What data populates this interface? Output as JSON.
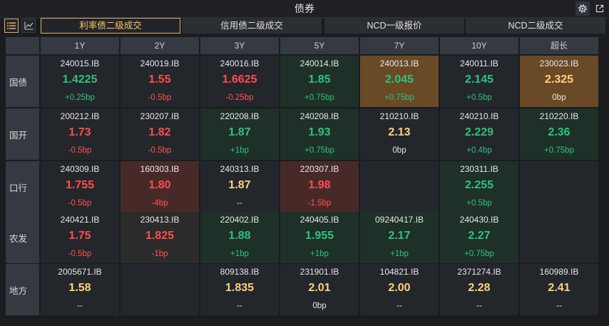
{
  "window": {
    "title": "债券"
  },
  "tabs": [
    {
      "label": "利率债二级成交",
      "active": true
    },
    {
      "label": "信用债二级成交",
      "active": false
    },
    {
      "label": "NCD一级报价",
      "active": false
    },
    {
      "label": "NCD二级成交",
      "active": false
    }
  ],
  "columns": [
    "1Y",
    "2Y",
    "3Y",
    "5Y",
    "7Y",
    "10Y",
    "超长"
  ],
  "rows": [
    {
      "name": "国债",
      "cells": [
        {
          "code": "240015.IB",
          "yield": "1.4225",
          "change": "+0.25bp",
          "tone": "green",
          "chg_tone": "green",
          "bg": "dark"
        },
        {
          "code": "240019.IB",
          "yield": "1.55",
          "change": "-0.5bp",
          "tone": "red",
          "chg_tone": "red",
          "bg": "dark"
        },
        {
          "code": "240016.IB",
          "yield": "1.6625",
          "change": "-0.25bp",
          "tone": "red",
          "chg_tone": "red",
          "bg": "dark"
        },
        {
          "code": "240014.IB",
          "yield": "1.85",
          "change": "+0.75bp",
          "tone": "green",
          "chg_tone": "green",
          "bg": "green"
        },
        {
          "code": "240013.IB",
          "yield": "2.045",
          "change": "+0.75bp",
          "tone": "green",
          "chg_tone": "green",
          "bg": "orange"
        },
        {
          "code": "240011.IB",
          "yield": "2.145",
          "change": "+0.5bp",
          "tone": "green",
          "chg_tone": "green",
          "bg": "dark"
        },
        {
          "code": "230023.IB",
          "yield": "2.325",
          "change": "0bp",
          "tone": "yellow",
          "chg_tone": "white",
          "bg": "orange"
        }
      ]
    },
    {
      "name": "国开",
      "cells": [
        {
          "code": "200212.IB",
          "yield": "1.73",
          "change": "-0.5bp",
          "tone": "red",
          "chg_tone": "red",
          "bg": "dark"
        },
        {
          "code": "230207.IB",
          "yield": "1.82",
          "change": "-0.5bp",
          "tone": "red",
          "chg_tone": "red",
          "bg": "dark"
        },
        {
          "code": "220208.IB",
          "yield": "1.87",
          "change": "+1bp",
          "tone": "green",
          "chg_tone": "green",
          "bg": "green"
        },
        {
          "code": "240208.IB",
          "yield": "1.93",
          "change": "+0.75bp",
          "tone": "green",
          "chg_tone": "green",
          "bg": "green"
        },
        {
          "code": "210210.IB",
          "yield": "2.13",
          "change": "0bp",
          "tone": "yellow",
          "chg_tone": "white",
          "bg": "dark"
        },
        {
          "code": "240210.IB",
          "yield": "2.229",
          "change": "+0.4bp",
          "tone": "green",
          "chg_tone": "green",
          "bg": "dark"
        },
        {
          "code": "210220.IB",
          "yield": "2.36",
          "change": "+0.75bp",
          "tone": "green",
          "chg_tone": "green",
          "bg": "green"
        }
      ]
    },
    {
      "name": "口行",
      "cells": [
        {
          "code": "240309.IB",
          "yield": "1.755",
          "change": "-0.5bp",
          "tone": "red",
          "chg_tone": "red",
          "bg": "dark"
        },
        {
          "code": "160303.IB",
          "yield": "1.80",
          "change": "-4bp",
          "tone": "red",
          "chg_tone": "red",
          "bg": "red"
        },
        {
          "code": "240313.IB",
          "yield": "1.87",
          "change": "--",
          "tone": "yellow",
          "chg_tone": "white",
          "bg": "dark"
        },
        {
          "code": "220307.IB",
          "yield": "1.98",
          "change": "-1.5bp",
          "tone": "red",
          "chg_tone": "red",
          "bg": "red"
        },
        {
          "code": "",
          "yield": "",
          "change": "",
          "tone": "yellow",
          "chg_tone": "white",
          "bg": "dark"
        },
        {
          "code": "230311.IB",
          "yield": "2.255",
          "change": "+0.5bp",
          "tone": "green",
          "chg_tone": "green",
          "bg": "green"
        },
        {
          "code": "",
          "yield": "",
          "change": "",
          "tone": "yellow",
          "chg_tone": "white",
          "bg": "dark"
        }
      ]
    },
    {
      "name": "农发",
      "cells": [
        {
          "code": "240421.IB",
          "yield": "1.75",
          "change": "-0.5bp",
          "tone": "red",
          "chg_tone": "red",
          "bg": "dark"
        },
        {
          "code": "230413.IB",
          "yield": "1.825",
          "change": "-1bp",
          "tone": "red",
          "chg_tone": "red",
          "bg": "neutral"
        },
        {
          "code": "220402.IB",
          "yield": "1.88",
          "change": "+1bp",
          "tone": "green",
          "chg_tone": "green",
          "bg": "green"
        },
        {
          "code": "240405.IB",
          "yield": "1.955",
          "change": "+1bp",
          "tone": "green",
          "chg_tone": "green",
          "bg": "green"
        },
        {
          "code": "09240417.IB",
          "yield": "2.17",
          "change": "+1bp",
          "tone": "green",
          "chg_tone": "green",
          "bg": "green"
        },
        {
          "code": "240430.IB",
          "yield": "2.27",
          "change": "+0.75bp",
          "tone": "green",
          "chg_tone": "green",
          "bg": "green"
        },
        {
          "code": "",
          "yield": "",
          "change": "",
          "tone": "yellow",
          "chg_tone": "white",
          "bg": "dark"
        }
      ]
    },
    {
      "name": "地方",
      "cells": [
        {
          "code": "2005671.IB",
          "yield": "1.58",
          "change": "--",
          "tone": "yellow",
          "chg_tone": "white",
          "bg": "dark"
        },
        {
          "code": "",
          "yield": "",
          "change": "",
          "tone": "yellow",
          "chg_tone": "white",
          "bg": "dark"
        },
        {
          "code": "809138.IB",
          "yield": "1.835",
          "change": "--",
          "tone": "yellow",
          "chg_tone": "white",
          "bg": "dark"
        },
        {
          "code": "231901.IB",
          "yield": "2.01",
          "change": "0bp",
          "tone": "yellow",
          "chg_tone": "white",
          "bg": "dark"
        },
        {
          "code": "104821.IB",
          "yield": "2.00",
          "change": "--",
          "tone": "yellow",
          "chg_tone": "white",
          "bg": "dark"
        },
        {
          "code": "2371274.IB",
          "yield": "2.28",
          "change": "--",
          "tone": "yellow",
          "chg_tone": "white",
          "bg": "dark"
        },
        {
          "code": "160989.IB",
          "yield": "2.41",
          "change": "--",
          "tone": "yellow",
          "chg_tone": "white",
          "bg": "dark"
        }
      ]
    }
  ],
  "icons": {
    "settings": "gear-icon",
    "popout": "external-link-icon",
    "list_view": "list-icon",
    "chart_view": "line-chart-icon"
  },
  "colors": {
    "accent": "#e0b060",
    "up": "#2ec27e",
    "down": "#ff4d4d",
    "flat": "#ffd278"
  }
}
